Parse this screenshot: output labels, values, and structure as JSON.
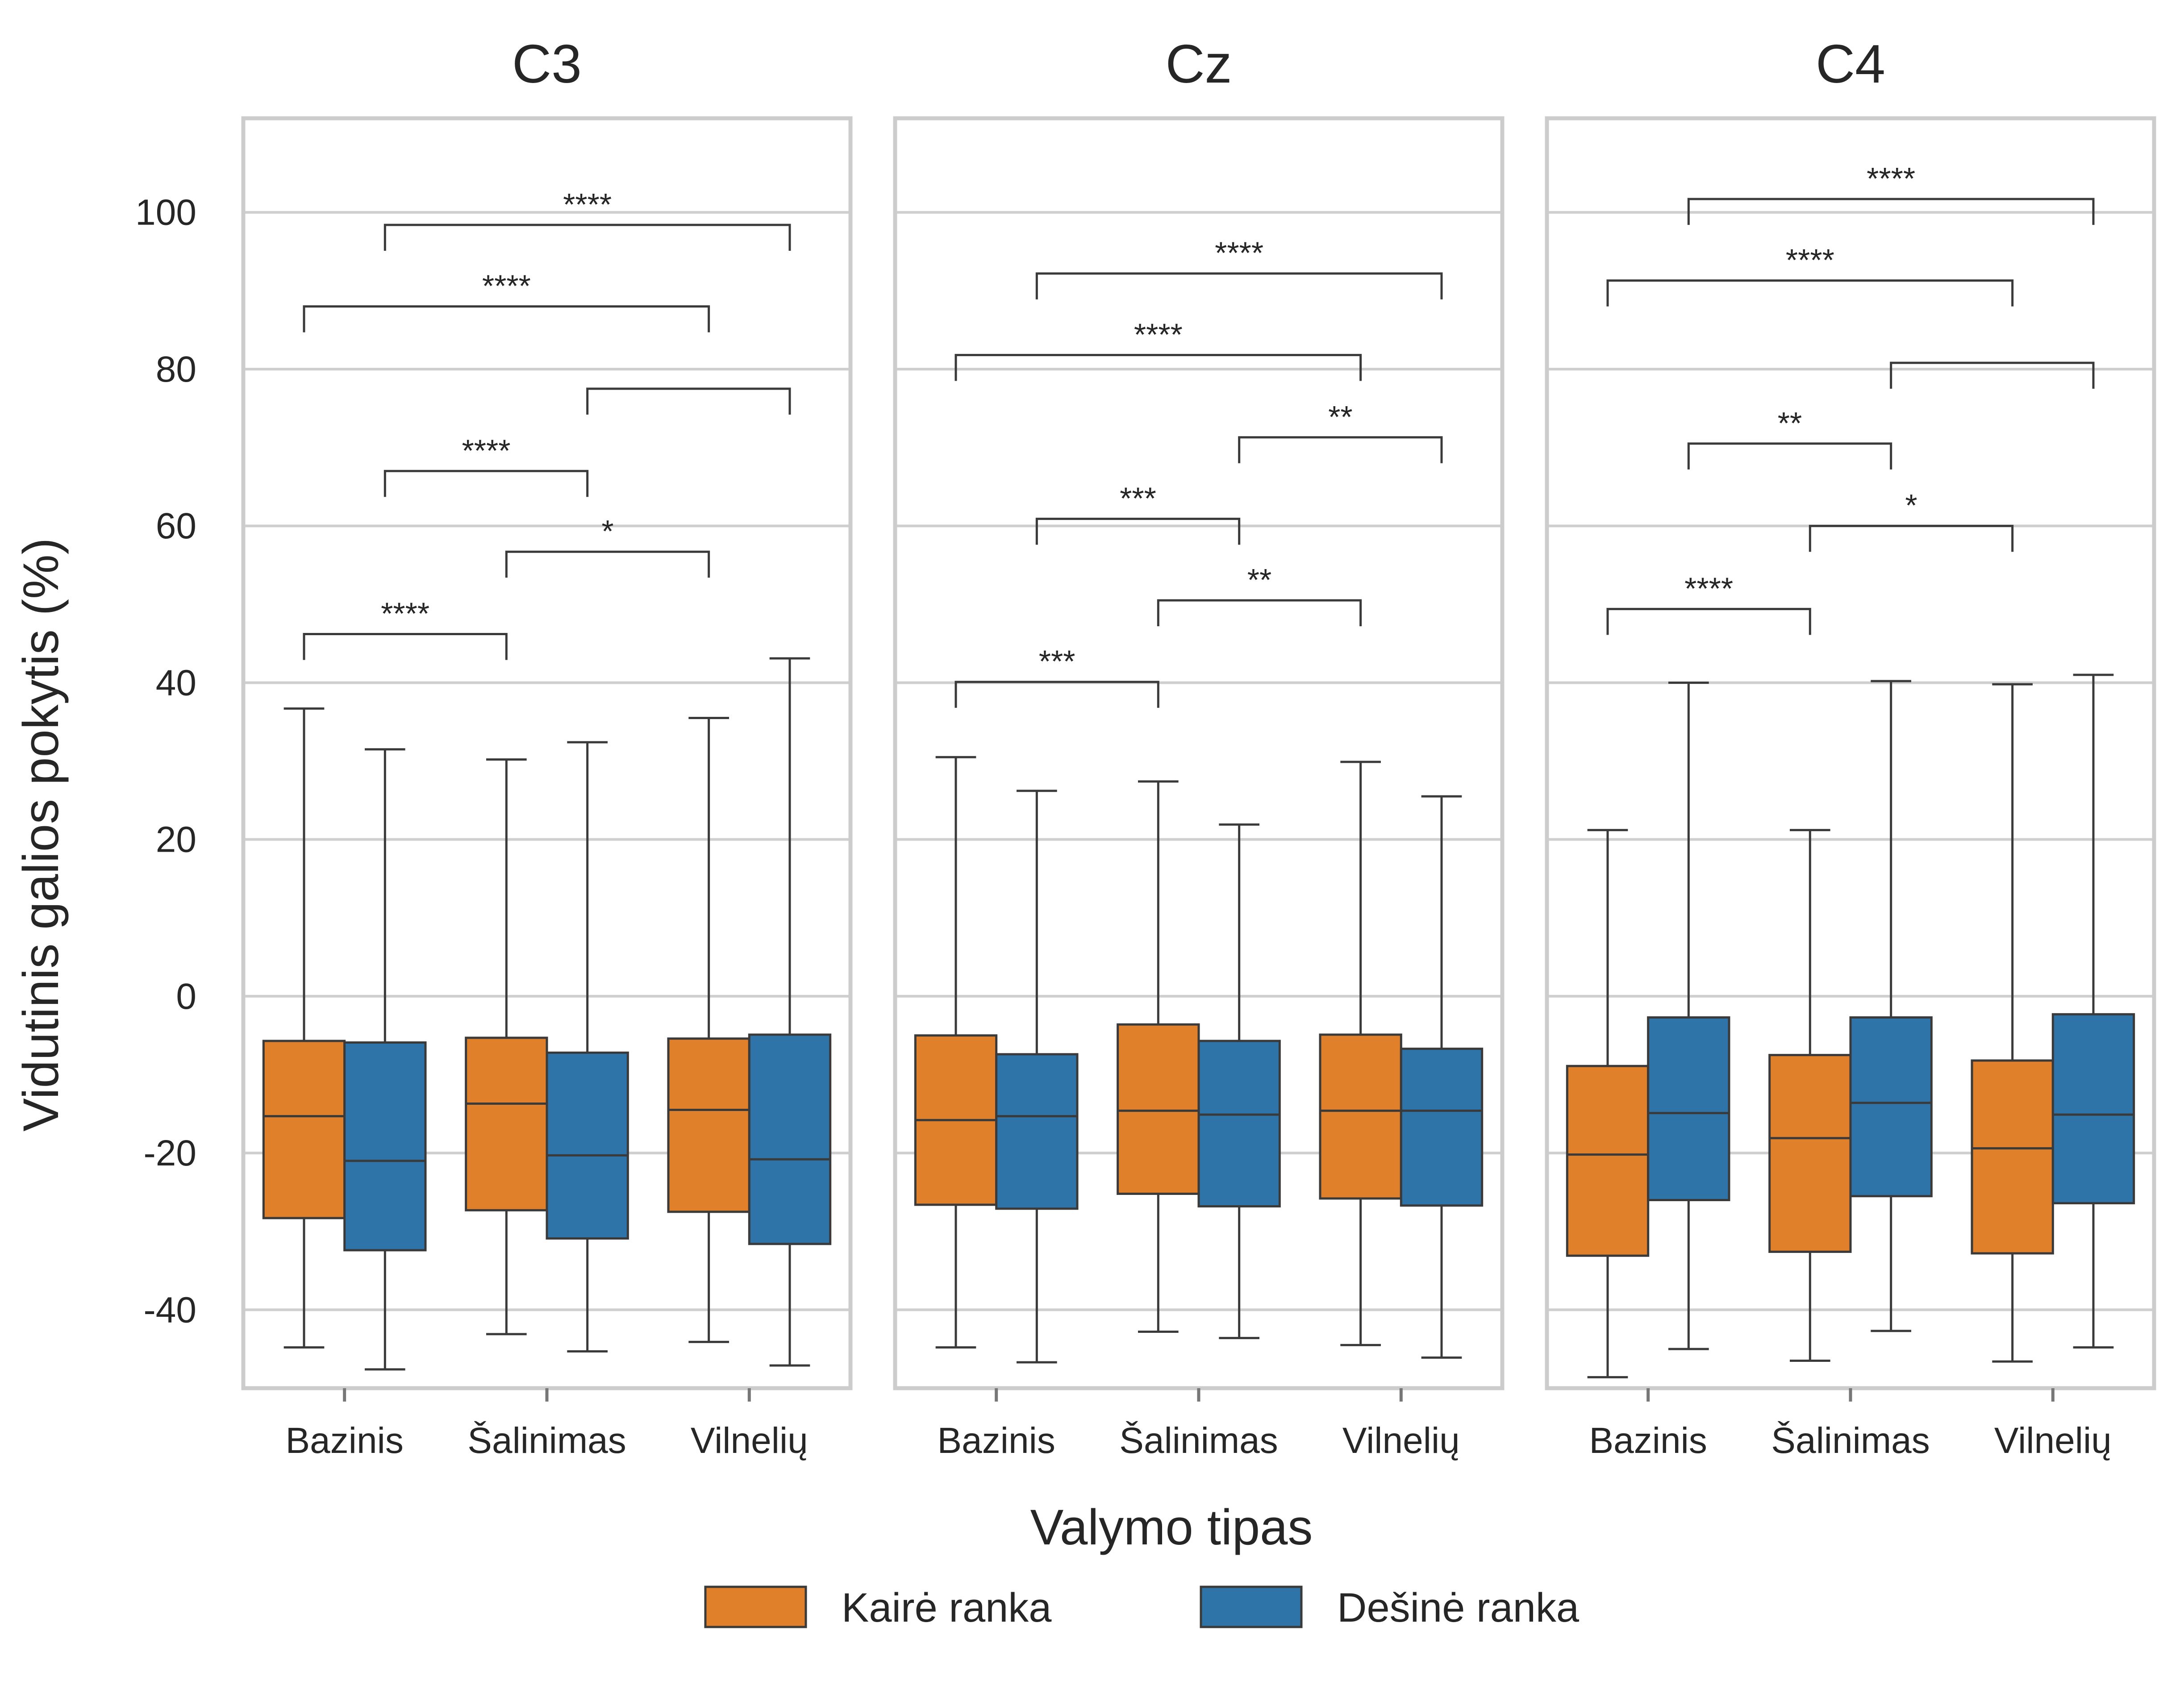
{
  "chart_data": {
    "type": "boxplot",
    "xlabel": "Valymo tipas",
    "ylabel": "Vidutinis galios pokytis (%)",
    "ylim": [
      -50,
      112
    ],
    "yticks": [
      -40,
      -20,
      0,
      20,
      40,
      60,
      80,
      100
    ],
    "ytick_labels": [
      "-40",
      "-20",
      "0",
      "20",
      "40",
      "60",
      "80",
      "100"
    ],
    "categories": [
      "Bazinis",
      "Šalinimas",
      "Vilnelių"
    ],
    "grid": true,
    "legend": {
      "placement": "bottom-center",
      "entries": [
        {
          "label": "Kairė ranka",
          "color": "#e0802b"
        },
        {
          "label": "Dešinė ranka",
          "color": "#2e74a9"
        }
      ]
    },
    "panels": [
      {
        "title": "C3",
        "boxes": [
          {
            "category": 0,
            "hue": 0,
            "whislo": -44.8,
            "q1": -28.3,
            "med": -15.3,
            "q3": -5.7,
            "whishi": 36.7
          },
          {
            "category": 0,
            "hue": 1,
            "whislo": -47.6,
            "q1": -32.4,
            "med": -21.0,
            "q3": -5.9,
            "whishi": 31.5
          },
          {
            "category": 1,
            "hue": 0,
            "whislo": -43.1,
            "q1": -27.3,
            "med": -13.7,
            "q3": -5.3,
            "whishi": 30.2
          },
          {
            "category": 1,
            "hue": 1,
            "whislo": -45.3,
            "q1": -30.9,
            "med": -20.3,
            "q3": -7.2,
            "whishi": 32.4
          },
          {
            "category": 2,
            "hue": 0,
            "whislo": -44.1,
            "q1": -27.5,
            "med": -14.5,
            "q3": -5.4,
            "whishi": 35.5
          },
          {
            "category": 2,
            "hue": 1,
            "whislo": -47.1,
            "q1": -31.6,
            "med": -20.8,
            "q3": -4.9,
            "whishi": 43.1
          }
        ],
        "brackets": [
          {
            "from": [
              0,
              0
            ],
            "to": [
              1,
              0
            ],
            "y": 46.2,
            "label": "****"
          },
          {
            "from": [
              1,
              0
            ],
            "to": [
              2,
              0
            ],
            "y": 56.7,
            "label": "*"
          },
          {
            "from": [
              0,
              1
            ],
            "to": [
              1,
              1
            ],
            "y": 67.0,
            "label": "****"
          },
          {
            "from": [
              1,
              1
            ],
            "to": [
              2,
              1
            ],
            "y": 77.5,
            "label": ""
          },
          {
            "from": [
              0,
              0
            ],
            "to": [
              2,
              0
            ],
            "y": 88.0,
            "label": "****"
          },
          {
            "from": [
              0,
              1
            ],
            "to": [
              2,
              1
            ],
            "y": 98.4,
            "label": "****"
          }
        ]
      },
      {
        "title": "Cz",
        "boxes": [
          {
            "category": 0,
            "hue": 0,
            "whislo": -44.8,
            "q1": -26.6,
            "med": -15.8,
            "q3": -5.0,
            "whishi": 30.5
          },
          {
            "category": 0,
            "hue": 1,
            "whislo": -46.7,
            "q1": -27.1,
            "med": -15.3,
            "q3": -7.4,
            "whishi": 26.2
          },
          {
            "category": 1,
            "hue": 0,
            "whislo": -42.8,
            "q1": -25.2,
            "med": -14.6,
            "q3": -3.6,
            "whishi": 27.4
          },
          {
            "category": 1,
            "hue": 1,
            "whislo": -43.6,
            "q1": -26.8,
            "med": -15.1,
            "q3": -5.7,
            "whishi": 21.9
          },
          {
            "category": 2,
            "hue": 0,
            "whislo": -44.5,
            "q1": -25.8,
            "med": -14.6,
            "q3": -4.9,
            "whishi": 29.9
          },
          {
            "category": 2,
            "hue": 1,
            "whislo": -46.1,
            "q1": -26.7,
            "med": -14.6,
            "q3": -6.7,
            "whishi": 25.5
          }
        ],
        "brackets": [
          {
            "from": [
              0,
              0
            ],
            "to": [
              1,
              0
            ],
            "y": 40.1,
            "label": "***"
          },
          {
            "from": [
              1,
              0
            ],
            "to": [
              2,
              0
            ],
            "y": 50.5,
            "label": "**"
          },
          {
            "from": [
              0,
              1
            ],
            "to": [
              1,
              1
            ],
            "y": 60.9,
            "label": "***"
          },
          {
            "from": [
              1,
              1
            ],
            "to": [
              2,
              1
            ],
            "y": 71.3,
            "label": "**"
          },
          {
            "from": [
              0,
              0
            ],
            "to": [
              2,
              0
            ],
            "y": 81.8,
            "label": "****"
          },
          {
            "from": [
              0,
              1
            ],
            "to": [
              2,
              1
            ],
            "y": 92.2,
            "label": "****"
          }
        ]
      },
      {
        "title": "C4",
        "boxes": [
          {
            "category": 0,
            "hue": 0,
            "whislo": -48.6,
            "q1": -33.1,
            "med": -20.2,
            "q3": -8.9,
            "whishi": 21.2
          },
          {
            "category": 0,
            "hue": 1,
            "whislo": -45.0,
            "q1": -26.0,
            "med": -14.9,
            "q3": -2.7,
            "whishi": 40.0
          },
          {
            "category": 1,
            "hue": 0,
            "whislo": -46.5,
            "q1": -32.6,
            "med": -18.1,
            "q3": -7.5,
            "whishi": 21.2
          },
          {
            "category": 1,
            "hue": 1,
            "whislo": -42.7,
            "q1": -25.5,
            "med": -13.6,
            "q3": -2.7,
            "whishi": 40.2
          },
          {
            "category": 2,
            "hue": 0,
            "whislo": -46.6,
            "q1": -32.8,
            "med": -19.4,
            "q3": -8.2,
            "whishi": 39.8
          },
          {
            "category": 2,
            "hue": 1,
            "whislo": -44.8,
            "q1": -26.4,
            "med": -15.1,
            "q3": -2.3,
            "whishi": 41.0
          }
        ],
        "brackets": [
          {
            "from": [
              0,
              0
            ],
            "to": [
              1,
              0
            ],
            "y": 49.4,
            "label": "****"
          },
          {
            "from": [
              1,
              0
            ],
            "to": [
              2,
              0
            ],
            "y": 60.0,
            "label": "*"
          },
          {
            "from": [
              0,
              1
            ],
            "to": [
              1,
              1
            ],
            "y": 70.5,
            "label": "**"
          },
          {
            "from": [
              1,
              1
            ],
            "to": [
              2,
              1
            ],
            "y": 80.8,
            "label": ""
          },
          {
            "from": [
              0,
              0
            ],
            "to": [
              2,
              0
            ],
            "y": 91.3,
            "label": "****"
          },
          {
            "from": [
              0,
              1
            ],
            "to": [
              2,
              1
            ],
            "y": 101.7,
            "label": "****"
          }
        ]
      }
    ]
  }
}
